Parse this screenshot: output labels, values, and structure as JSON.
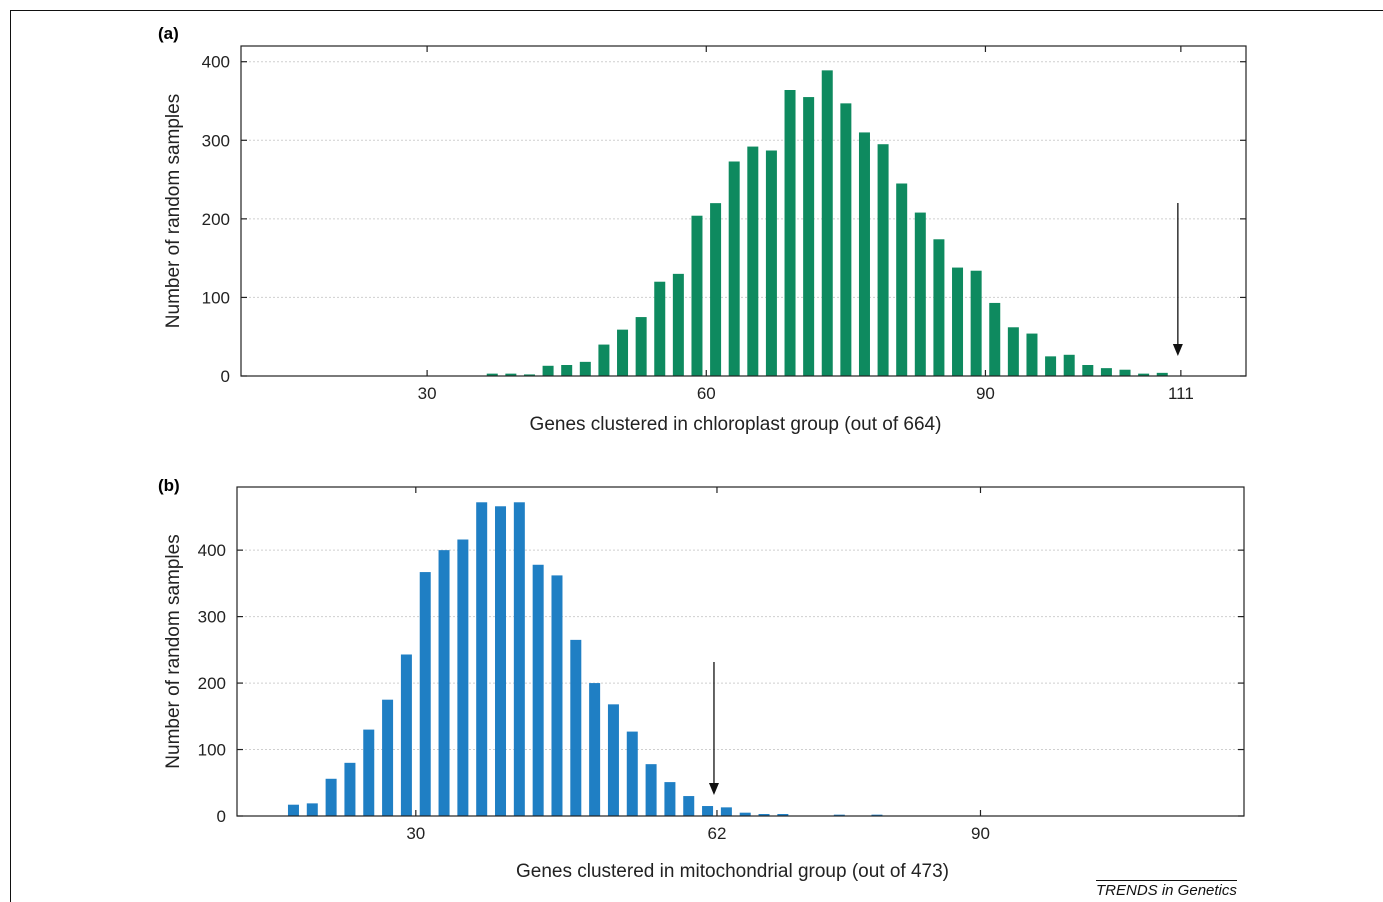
{
  "colors": {
    "panel_a": "#0e8a5f",
    "panel_b": "#1f7fc4"
  },
  "credit": "TRENDS in Genetics",
  "chart_data": [
    {
      "type": "bar",
      "panel_label": "(a)",
      "xlabel": "Genes clustered in chloroplast group (out of 664)",
      "ylabel": "Number of random samples",
      "xlim": [
        10,
        118
      ],
      "ylim": [
        0,
        420
      ],
      "xticks": [
        30,
        60,
        90,
        111
      ],
      "yticks": [
        0,
        100,
        200,
        300,
        400
      ],
      "grid": true,
      "arrow_at": 111,
      "x": [
        37,
        39,
        41,
        43,
        45,
        47,
        49,
        51,
        53,
        55,
        57,
        59,
        61,
        63,
        65,
        67,
        69,
        71,
        73,
        75,
        77,
        79,
        81,
        83,
        85,
        87,
        89,
        91,
        93,
        95,
        97,
        99,
        101,
        103,
        105,
        107,
        109
      ],
      "values": [
        3,
        3,
        2,
        13,
        14,
        18,
        40,
        59,
        75,
        120,
        130,
        204,
        220,
        273,
        292,
        287,
        364,
        355,
        389,
        347,
        310,
        295,
        245,
        208,
        174,
        138,
        134,
        93,
        62,
        54,
        25,
        27,
        14,
        10,
        8,
        3,
        4
      ]
    },
    {
      "type": "bar",
      "panel_label": "(b)",
      "xlabel": "Genes clustered in mitochondrial group (out of 473)",
      "ylabel": "Number of random samples",
      "xlim": [
        11,
        118
      ],
      "ylim": [
        0,
        495
      ],
      "xticks": [
        30,
        62,
        90
      ],
      "yticks": [
        0,
        100,
        200,
        300,
        400
      ],
      "grid": true,
      "arrow_at": 62,
      "x": [
        17,
        19,
        21,
        23,
        25,
        27,
        29,
        31,
        33,
        35,
        37,
        39,
        41,
        43,
        45,
        47,
        49,
        51,
        53,
        55,
        57,
        59,
        61,
        63,
        65,
        67,
        69,
        75,
        79
      ],
      "values": [
        17,
        19,
        56,
        80,
        130,
        175,
        243,
        367,
        400,
        416,
        472,
        466,
        472,
        378,
        362,
        265,
        200,
        168,
        127,
        78,
        51,
        30,
        15,
        13,
        5,
        3,
        3,
        2,
        2
      ]
    }
  ]
}
